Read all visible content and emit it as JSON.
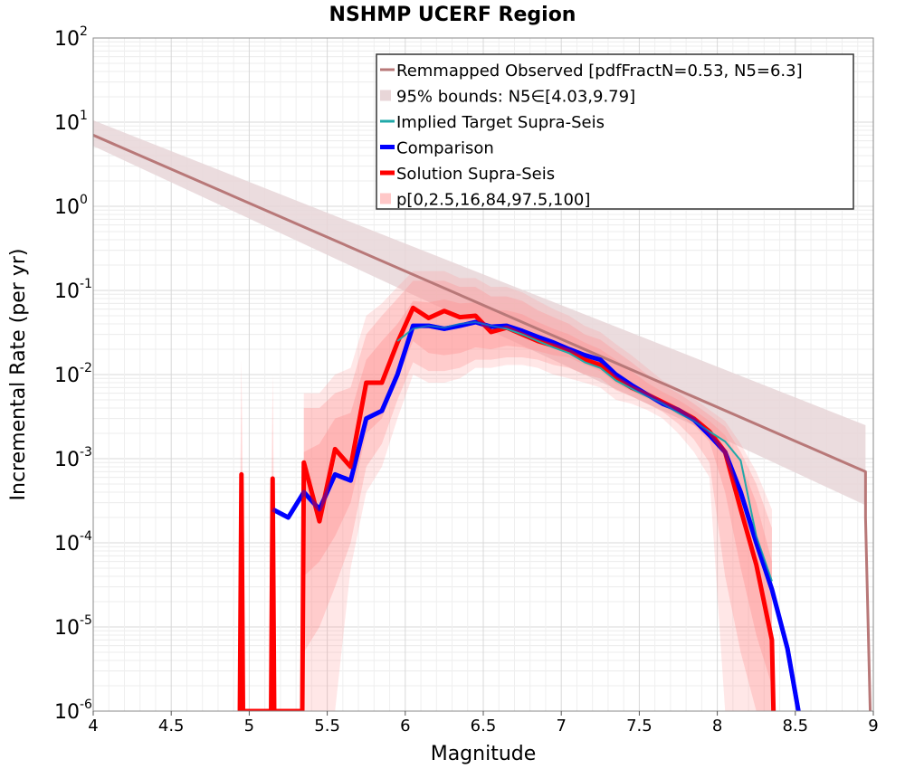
{
  "chart_data": {
    "type": "line",
    "title": "NSHMP UCERF Region",
    "xlabel": "Magnitude",
    "ylabel": "Incremental Rate (per yr)",
    "xlim": [
      4,
      9
    ],
    "ylim": [
      1e-06,
      100
    ],
    "y_scale": "log",
    "grid": true,
    "legend_placement": "top-right",
    "x_ticks": [
      "4",
      "4.5",
      "5",
      "5.5",
      "6",
      "6.5",
      "7",
      "7.5",
      "8",
      "8.5",
      "9"
    ],
    "y_ticks": [
      {
        "base": "10",
        "exp": "2"
      },
      {
        "base": "10",
        "exp": "1"
      },
      {
        "base": "10",
        "exp": "0"
      },
      {
        "base": "10",
        "exp": "-1"
      },
      {
        "base": "10",
        "exp": "-2"
      },
      {
        "base": "10",
        "exp": "-3"
      },
      {
        "base": "10",
        "exp": "-4"
      },
      {
        "base": "10",
        "exp": "-5"
      },
      {
        "base": "10",
        "exp": "-6"
      }
    ],
    "legend": [
      {
        "label": "Remmapped Observed [pdfFractN=0.53, N5=6.3]",
        "color": "#b87878",
        "kind": "line"
      },
      {
        "label": "95% bounds: N5∈[4.03,9.79]",
        "color": "#e8d6d8",
        "kind": "band"
      },
      {
        "label": "Implied Target Supra-Seis",
        "color": "#20a8a8",
        "kind": "line"
      },
      {
        "label": "Comparison",
        "color": "#0000ff",
        "kind": "line"
      },
      {
        "label": "Solution Supra-Seis",
        "color": "#ff0000",
        "kind": "line"
      },
      {
        "label": "p[0,2.5,16,84,97.5,100]",
        "color": "#ffc8c8",
        "kind": "band"
      }
    ],
    "observed": {
      "name": "Remmapped Observed [pdfFractN=0.53, N5=6.3]",
      "color": "#b87878",
      "x": [
        4.0,
        8.95,
        8.95,
        8.98
      ],
      "y": [
        7.0,
        0.0007,
        0.0002,
        1e-06
      ],
      "band_color": "#e8d6d8",
      "band_x": [
        4.0,
        8.95
      ],
      "band_low": [
        5.2,
        0.00028
      ],
      "band_high": [
        10.5,
        0.0025
      ]
    },
    "series": [
      {
        "name": "Implied Target Supra-Seis",
        "color": "#20a8a8",
        "x": [
          5.95,
          6.05,
          6.15,
          6.25,
          6.35,
          6.45,
          6.55,
          6.65,
          6.75,
          6.85,
          6.95,
          7.05,
          7.15,
          7.25,
          7.35,
          7.45,
          7.55,
          7.65,
          7.75,
          7.85,
          7.95,
          8.05,
          8.15,
          8.25,
          8.35
        ],
        "y": [
          0.025,
          0.035,
          0.038,
          0.036,
          0.04,
          0.042,
          0.038,
          0.035,
          0.03,
          0.025,
          0.021,
          0.018,
          0.014,
          0.012,
          0.0085,
          0.0068,
          0.0055,
          0.0045,
          0.0035,
          0.0028,
          0.0021,
          0.0016,
          0.00095,
          0.00012,
          3.5e-05
        ]
      },
      {
        "name": "Comparison",
        "color": "#0000ff",
        "x": [
          5.15,
          5.25,
          5.35,
          5.45,
          5.55,
          5.65,
          5.75,
          5.85,
          5.95,
          6.05,
          6.15,
          6.25,
          6.35,
          6.45,
          6.55,
          6.65,
          6.75,
          6.85,
          6.95,
          7.05,
          7.15,
          7.25,
          7.35,
          7.45,
          7.55,
          7.65,
          7.75,
          7.85,
          7.95,
          8.05,
          8.15,
          8.25,
          8.35,
          8.45,
          8.52
        ],
        "y": [
          0.00025,
          0.0002,
          0.0004,
          0.00025,
          0.00065,
          0.00055,
          0.003,
          0.0037,
          0.01,
          0.038,
          0.038,
          0.035,
          0.038,
          0.042,
          0.037,
          0.038,
          0.033,
          0.028,
          0.024,
          0.02,
          0.017,
          0.015,
          0.01,
          0.0075,
          0.0058,
          0.0045,
          0.0038,
          0.0029,
          0.0019,
          0.0012,
          0.0004,
          0.0001,
          2.8e-05,
          5.5e-06,
          1e-06
        ]
      },
      {
        "name": "Solution Supra-Seis",
        "color": "#ff0000",
        "x": [
          4.94,
          4.95,
          4.96,
          5.14,
          5.15,
          5.16,
          5.34,
          5.35,
          5.45,
          5.55,
          5.65,
          5.75,
          5.85,
          5.95,
          6.05,
          6.15,
          6.25,
          6.35,
          6.45,
          6.55,
          6.65,
          6.75,
          6.85,
          6.95,
          7.05,
          7.15,
          7.25,
          7.35,
          7.45,
          7.55,
          7.65,
          7.75,
          7.85,
          7.95,
          8.05,
          8.15,
          8.25,
          8.35,
          8.36
        ],
        "y": [
          1e-06,
          0.00065,
          1e-06,
          1e-06,
          0.00058,
          1e-06,
          1e-06,
          0.0009,
          0.00018,
          0.0013,
          0.0008,
          0.008,
          0.008,
          0.024,
          0.062,
          0.047,
          0.057,
          0.048,
          0.05,
          0.032,
          0.036,
          0.03,
          0.025,
          0.022,
          0.019,
          0.015,
          0.013,
          0.009,
          0.007,
          0.0058,
          0.0047,
          0.0038,
          0.003,
          0.0021,
          0.0012,
          0.00025,
          5.5e-05,
          7e-06,
          1e-06
        ]
      }
    ],
    "percentile_bands": {
      "name": "p[0,2.5,16,84,97.5,100]",
      "color": "#ff9090",
      "x": [
        5.35,
        5.45,
        5.55,
        5.65,
        5.75,
        5.85,
        5.95,
        6.05,
        6.15,
        6.25,
        6.35,
        6.45,
        6.55,
        6.65,
        6.75,
        6.85,
        6.95,
        7.05,
        7.15,
        7.25,
        7.35,
        7.45,
        7.55,
        7.65,
        7.75,
        7.85,
        7.95,
        8.05,
        8.15,
        8.25,
        8.35
      ],
      "p0": [
        1e-06,
        1e-06,
        1e-06,
        5e-05,
        0.0004,
        0.0008,
        0.003,
        0.01,
        0.008,
        0.008,
        0.009,
        0.012,
        0.012,
        0.013,
        0.013,
        0.012,
        0.01,
        0.009,
        0.008,
        0.007,
        0.005,
        0.0045,
        0.0038,
        0.003,
        0.002,
        0.0012,
        0.0006,
        1e-06,
        1e-06,
        1e-06,
        1e-06
      ],
      "p2_5": [
        5e-06,
        1e-05,
        3e-05,
        0.0001,
        0.0008,
        0.0015,
        0.005,
        0.014,
        0.011,
        0.011,
        0.012,
        0.015,
        0.015,
        0.016,
        0.016,
        0.015,
        0.013,
        0.012,
        0.01,
        0.009,
        0.0065,
        0.0055,
        0.0045,
        0.0036,
        0.0026,
        0.0017,
        0.0009,
        4e-05,
        5e-06,
        1e-06,
        1e-06
      ],
      "p16": [
        4e-05,
        6e-05,
        0.00012,
        0.0003,
        0.002,
        0.003,
        0.009,
        0.025,
        0.018,
        0.017,
        0.018,
        0.021,
        0.02,
        0.022,
        0.021,
        0.019,
        0.017,
        0.016,
        0.013,
        0.011,
        0.0078,
        0.0063,
        0.0052,
        0.0042,
        0.0033,
        0.0025,
        0.0016,
        0.0004,
        5e-05,
        8e-06,
        2e-06
      ],
      "p84": [
        0.0012,
        0.0015,
        0.003,
        0.0035,
        0.015,
        0.025,
        0.04,
        0.075,
        0.072,
        0.078,
        0.07,
        0.072,
        0.058,
        0.058,
        0.052,
        0.042,
        0.035,
        0.03,
        0.024,
        0.02,
        0.015,
        0.011,
        0.008,
        0.0062,
        0.005,
        0.0038,
        0.0028,
        0.0019,
        0.0009,
        0.0003,
        6e-05
      ],
      "p97_5": [
        0.004,
        0.004,
        0.006,
        0.007,
        0.03,
        0.05,
        0.08,
        0.13,
        0.13,
        0.13,
        0.11,
        0.11,
        0.085,
        0.085,
        0.075,
        0.058,
        0.048,
        0.04,
        0.03,
        0.026,
        0.019,
        0.014,
        0.01,
        0.0075,
        0.006,
        0.0045,
        0.0033,
        0.0024,
        0.0012,
        0.0005,
        0.00015
      ],
      "p100": [
        0.006,
        0.006,
        0.01,
        0.012,
        0.05,
        0.07,
        0.11,
        0.17,
        0.17,
        0.17,
        0.14,
        0.14,
        0.11,
        0.11,
        0.095,
        0.075,
        0.06,
        0.05,
        0.038,
        0.032,
        0.023,
        0.017,
        0.012,
        0.0085,
        0.0068,
        0.0052,
        0.0038,
        0.0028,
        0.0015,
        0.0007,
        0.00025
      ]
    }
  }
}
